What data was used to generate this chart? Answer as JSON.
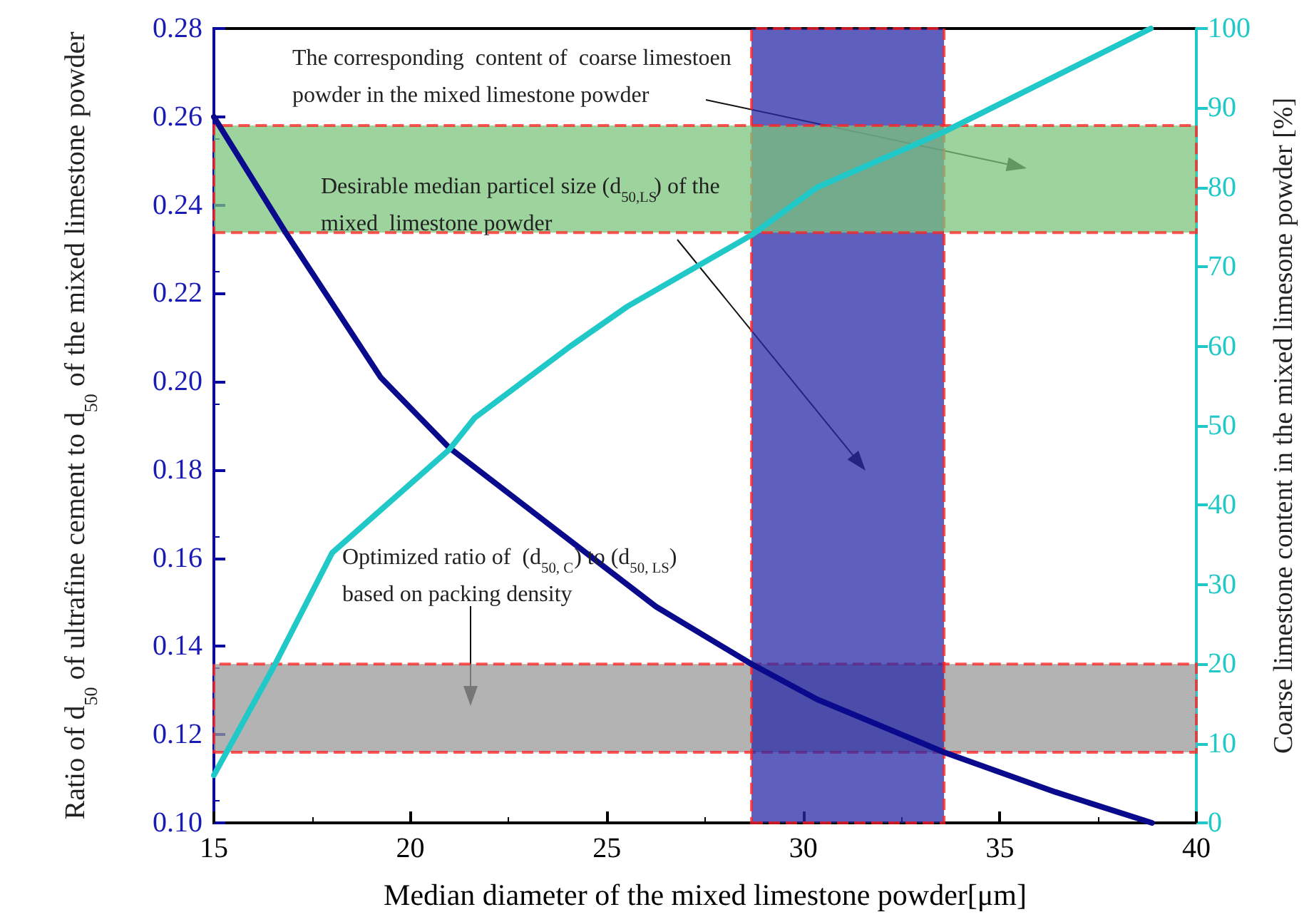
{
  "chart_data": {
    "type": "line",
    "xlabel": "Median diameter of the mixed limestone powder[μm]",
    "ylabel": "Ratio of d$_{50}$ of ultrafine cement to d$_{50}$ of the mixed limestone powder",
    "y2label": "Coarse limestone content in the mixed limesone powder [%]",
    "xlim": [
      15,
      40
    ],
    "xticks": [
      15,
      20,
      25,
      30,
      35,
      40
    ],
    "ylim": [
      0.1,
      0.28
    ],
    "yticks": [
      {
        "value": 0.1,
        "label": "0.10"
      },
      {
        "value": 0.12,
        "label": "0.12"
      },
      {
        "value": 0.14,
        "label": "0.14"
      },
      {
        "value": 0.16,
        "label": "0.16"
      },
      {
        "value": 0.18,
        "label": "0.18"
      },
      {
        "value": 0.2,
        "label": "0.20"
      },
      {
        "value": 0.22,
        "label": "0.22"
      },
      {
        "value": 0.24,
        "label": "0.24"
      },
      {
        "value": 0.26,
        "label": "0.26"
      },
      {
        "value": 0.28,
        "label": "0.28"
      }
    ],
    "y2lim": [
      0,
      100
    ],
    "y2ticks": [
      0,
      10,
      20,
      30,
      40,
      50,
      60,
      70,
      80,
      90,
      100
    ],
    "grid": false,
    "marker": "none",
    "line_style": "solid",
    "series": [
      {
        "color": "#0a0a8c",
        "x": [
          15,
          16.81,
          19.24,
          20.99,
          26.25,
          28.68,
          30.35,
          33.58,
          36.41,
          38.87
        ],
        "values": [
          0.26,
          0.234,
          0.201,
          0.185,
          0.149,
          0.136,
          0.128,
          0.116,
          0.107,
          0.1
        ]
      },
      {
        "color": "#20c8c8",
        "axis": "y2",
        "x": [
          15,
          16.56,
          18.01,
          20.99,
          21.64,
          24.07,
          25.52,
          28.68,
          30.35,
          33.58,
          38.84
        ],
        "values": [
          6,
          20,
          34,
          47,
          51,
          60,
          65,
          74,
          80,
          87,
          100
        ]
      }
    ],
    "bands": [
      {
        "axis": "y",
        "from": 0.116,
        "to": 0.136,
        "color": "#9a9a9a"
      },
      {
        "axis": "x",
        "from": 28.68,
        "to": 33.58,
        "color": "#2a2aa8"
      },
      {
        "axis": "y2",
        "from": 74.3,
        "to": 87.8,
        "color": "#7cc47c"
      }
    ],
    "annotations": [
      "The corresponding  content of  coarse limestoen powder in the mixed limestone powder",
      "Desirable median particel size (d$_{50,LS}$) of the mixed  limestone powder",
      "Optimized ratio of  (d$_{50, C}$) to (d$_{50, LS}$) based on packing density"
    ]
  }
}
